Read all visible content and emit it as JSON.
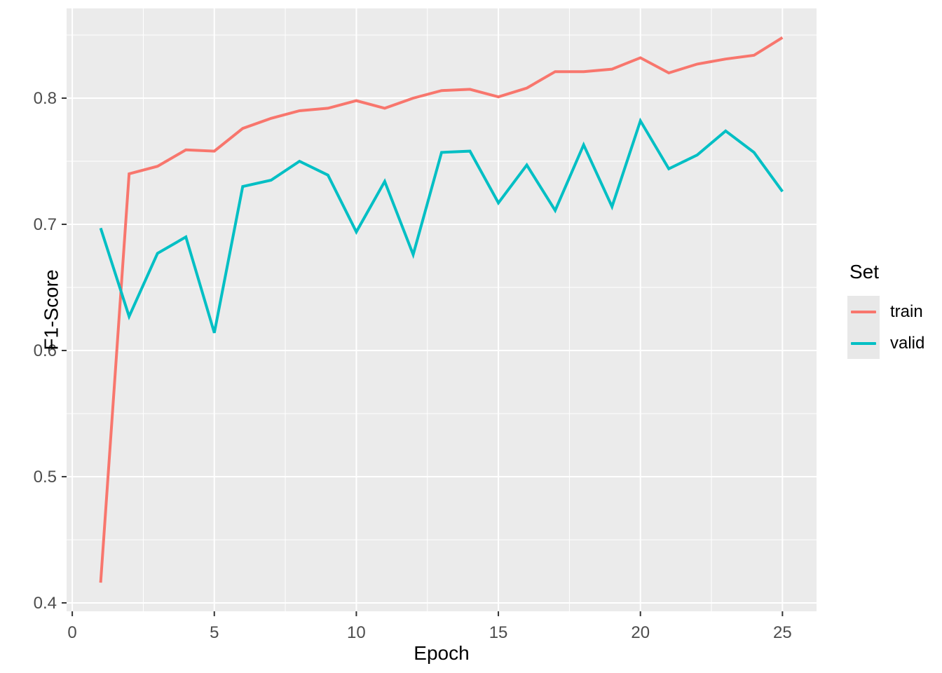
{
  "chart_data": {
    "type": "line",
    "title": "",
    "xlabel": "Epoch",
    "ylabel": "F1-Score",
    "x": [
      1,
      2,
      3,
      4,
      5,
      6,
      7,
      8,
      9,
      10,
      11,
      12,
      13,
      14,
      15,
      16,
      17,
      18,
      19,
      20,
      21,
      22,
      23,
      24,
      25
    ],
    "series": [
      {
        "name": "train",
        "color": "#F8766D",
        "values": [
          0.416,
          0.74,
          0.746,
          0.759,
          0.758,
          0.776,
          0.784,
          0.79,
          0.792,
          0.798,
          0.792,
          0.8,
          0.806,
          0.807,
          0.801,
          0.808,
          0.821,
          0.821,
          0.823,
          0.832,
          0.82,
          0.827,
          0.831,
          0.834,
          0.848
        ]
      },
      {
        "name": "valid",
        "color": "#00BFC4",
        "values": [
          0.697,
          0.627,
          0.677,
          0.69,
          0.614,
          0.73,
          0.735,
          0.75,
          0.739,
          0.694,
          0.734,
          0.676,
          0.757,
          0.758,
          0.717,
          0.747,
          0.711,
          0.763,
          0.714,
          0.782,
          0.744,
          0.755,
          0.774,
          0.757,
          0.726
        ]
      }
    ],
    "x_ticks": [
      0,
      5,
      10,
      15,
      20,
      25
    ],
    "x_tick_labels": [
      "0",
      "5",
      "10",
      "15",
      "20",
      "25"
    ],
    "y_ticks": [
      0.4,
      0.5,
      0.6,
      0.7,
      0.8
    ],
    "y_tick_labels": [
      "0.4",
      "0.5",
      "0.6",
      "0.7",
      "0.8"
    ],
    "x_minor_ticks": [
      2.5,
      7.5,
      12.5,
      17.5,
      22.5
    ],
    "y_minor_ticks": [
      0.45,
      0.55,
      0.65,
      0.75,
      0.85
    ],
    "xlim": [
      -0.2,
      26.2
    ],
    "ylim": [
      0.3933,
      0.8711
    ],
    "grid": "major-and-minor",
    "legend": {
      "title": "Set",
      "position": "right",
      "entries": [
        "train",
        "valid"
      ]
    },
    "colors": {
      "panel_background": "#EBEBEB",
      "gridline": "#FFFFFF",
      "tick_mark": "#333333",
      "tick_label_text": "#4D4D4D",
      "axis_title_text": "#000000",
      "legend_key_background": "#E8E8E8",
      "plot_background": "#FFFFFF"
    }
  }
}
